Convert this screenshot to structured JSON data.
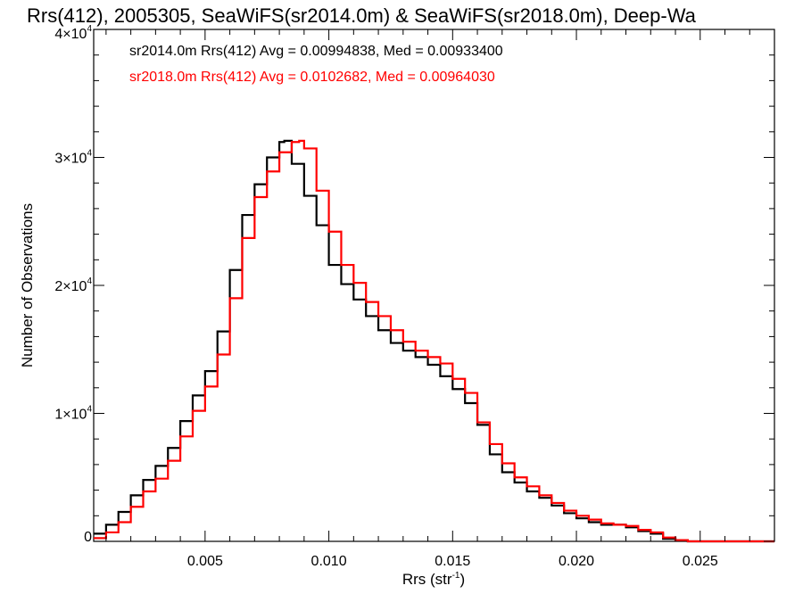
{
  "chart_data": {
    "type": "line",
    "title": "Rrs(412), 2005305, SeaWiFS(sr2014.0m) & SeaWiFS(sr2018.0m), Deep-Wa",
    "xlabel": "Rrs (str",
    "xlabel_sup": "-1",
    "xlabel_end": ")",
    "ylabel": "Number of Observations",
    "xlim": [
      0.0005,
      0.028
    ],
    "ylim": [
      0,
      40000
    ],
    "x_ticks": [
      {
        "value": 0.005,
        "label": "0.005"
      },
      {
        "value": 0.01,
        "label": "0.010"
      },
      {
        "value": 0.015,
        "label": "0.015"
      },
      {
        "value": 0.02,
        "label": "0.020"
      },
      {
        "value": 0.025,
        "label": "0.025"
      }
    ],
    "y_ticks": [
      {
        "value": 0,
        "label": "0",
        "exp": ""
      },
      {
        "value": 10000,
        "label": "1×10",
        "exp": "4"
      },
      {
        "value": 20000,
        "label": "2×10",
        "exp": "4"
      },
      {
        "value": 30000,
        "label": "3×10",
        "exp": "4"
      },
      {
        "value": 40000,
        "label": "4×10",
        "exp": "4"
      }
    ],
    "annotations": [
      {
        "text": "sr2014.0m Rrs(412) Avg = 0.00994838, Med = 0.00933400",
        "color": "#000000"
      },
      {
        "text": "sr2018.0m Rrs(412) Avg = 0.0102682, Med = 0.00964030",
        "color": "#ff0000"
      }
    ],
    "series": [
      {
        "color": "#000000",
        "step": true,
        "x": [
          0.0005,
          0.001,
          0.0015,
          0.002,
          0.0025,
          0.003,
          0.0035,
          0.004,
          0.0045,
          0.005,
          0.0055,
          0.006,
          0.0065,
          0.007,
          0.0075,
          0.008,
          0.0082,
          0.0085,
          0.009,
          0.0095,
          0.01,
          0.0105,
          0.011,
          0.0115,
          0.012,
          0.0125,
          0.013,
          0.0135,
          0.014,
          0.0145,
          0.015,
          0.0155,
          0.016,
          0.0165,
          0.017,
          0.0175,
          0.018,
          0.0185,
          0.019,
          0.0195,
          0.02,
          0.0205,
          0.021,
          0.0215,
          0.022,
          0.0225,
          0.023,
          0.0235,
          0.024,
          0.0245,
          0.025,
          0.026,
          0.027,
          0.028
        ],
        "y": [
          600,
          1300,
          2300,
          3600,
          4800,
          5900,
          7300,
          9400,
          11400,
          13300,
          16400,
          21200,
          25500,
          27900,
          30000,
          31200,
          31300,
          29500,
          27000,
          24700,
          21600,
          20100,
          18900,
          17600,
          16500,
          15500,
          14900,
          14400,
          13800,
          12900,
          11900,
          10800,
          9100,
          6800,
          5400,
          4600,
          3900,
          3400,
          2800,
          2200,
          1800,
          1500,
          1300,
          1300,
          1100,
          800,
          600,
          200,
          50,
          0,
          0,
          0,
          0,
          0
        ]
      },
      {
        "color": "#ff0000",
        "step": true,
        "x": [
          0.0005,
          0.001,
          0.0015,
          0.002,
          0.0025,
          0.003,
          0.0035,
          0.004,
          0.0045,
          0.005,
          0.0055,
          0.006,
          0.0065,
          0.007,
          0.0075,
          0.008,
          0.0085,
          0.0088,
          0.009,
          0.0095,
          0.01,
          0.0105,
          0.011,
          0.0115,
          0.012,
          0.0125,
          0.013,
          0.0135,
          0.014,
          0.0145,
          0.015,
          0.0155,
          0.016,
          0.0165,
          0.017,
          0.0175,
          0.018,
          0.0185,
          0.019,
          0.0195,
          0.02,
          0.0205,
          0.021,
          0.0215,
          0.022,
          0.0225,
          0.023,
          0.0235,
          0.024,
          0.0245,
          0.025,
          0.026,
          0.027,
          0.028
        ],
        "y": [
          250,
          700,
          1500,
          2700,
          3900,
          4900,
          6300,
          8200,
          10200,
          12100,
          14600,
          19000,
          23700,
          26900,
          28900,
          30400,
          31200,
          31300,
          30700,
          27400,
          24200,
          21600,
          20200,
          18700,
          17600,
          16500,
          15600,
          14900,
          14400,
          13900,
          12700,
          11600,
          9300,
          7600,
          6100,
          5000,
          4300,
          3600,
          3000,
          2400,
          2000,
          1700,
          1400,
          1300,
          1200,
          900,
          700,
          300,
          100,
          0,
          0,
          0,
          0,
          0
        ]
      }
    ]
  }
}
